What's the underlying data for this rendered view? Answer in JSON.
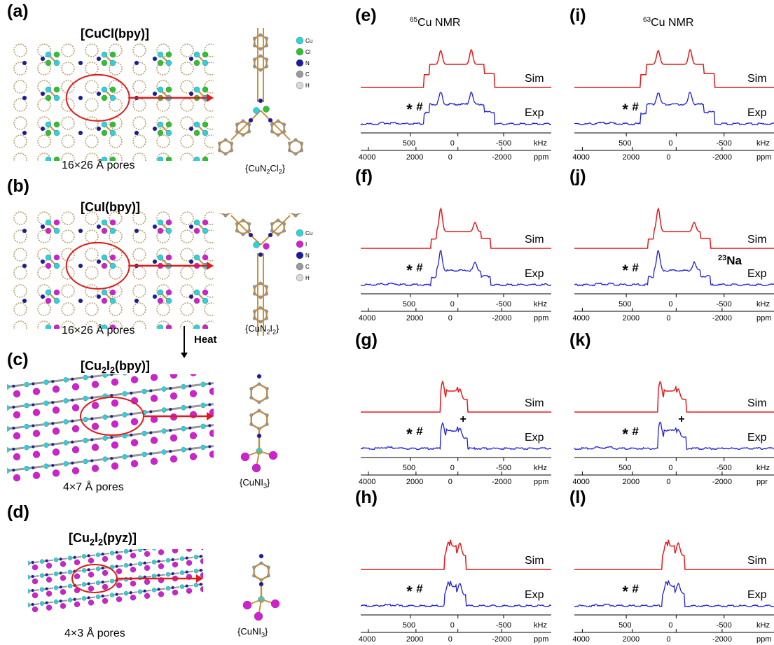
{
  "colors": {
    "sim": "#e31a1c",
    "exp": "#1f1fd6",
    "arrow": "#e11b1b",
    "ellipse": "#e11b1b",
    "cu": "#2ad4dc",
    "cl": "#2fc22f",
    "i": "#d21fd2",
    "n": "#1a1aa8",
    "c": "#9a9a9a",
    "h": "#d8d8d8",
    "bond": "#c89040"
  },
  "structures": {
    "a": {
      "label": "(a)",
      "title": "[CuCl(bpy)]",
      "pores": "16×26 Å pores",
      "fragment": "{CuN2Cl2}",
      "legend": [
        "Cu",
        "Cl",
        "N",
        "C",
        "H"
      ],
      "legend_colors": [
        "cu",
        "cl",
        "n",
        "c",
        "h"
      ]
    },
    "b": {
      "label": "(b)",
      "title": "[CuI(bpy)]",
      "pores": "16×26 Å pores",
      "fragment": "{CuN2I2}",
      "legend": [
        "Cu",
        "I",
        "N",
        "C",
        "H"
      ],
      "legend_colors": [
        "cu",
        "i",
        "n",
        "c",
        "h"
      ]
    },
    "c": {
      "label": "(c)",
      "title": "[Cu2I2(bpy)]",
      "pores": "4×7 Å pores",
      "fragment": "{CuNI3}"
    },
    "d": {
      "label": "(d)",
      "title": "[Cu2I2(pyz)]",
      "pores": "4×3 Å pores",
      "fragment": "{CuNI3}"
    }
  },
  "heat_label": "Heat",
  "column_titles": {
    "cu65": "65Cu NMR",
    "cu63": "63Cu NMR"
  },
  "spectra": [
    {
      "label": "(e)",
      "sim": "Sim",
      "exp": "Exp",
      "markers": [
        "*",
        "#"
      ]
    },
    {
      "label": "(f)",
      "sim": "Sim",
      "exp": "Exp",
      "markers": [
        "*",
        "#"
      ]
    },
    {
      "label": "(g)",
      "sim": "Sim",
      "exp": "Exp",
      "markers": [
        "*",
        "#",
        "+"
      ]
    },
    {
      "label": "(h)",
      "sim": "Sim",
      "exp": "Exp",
      "markers": [
        "*",
        "#"
      ]
    },
    {
      "label": "(i)",
      "sim": "Sim",
      "exp": "Exp",
      "markers": [
        "*",
        "#"
      ]
    },
    {
      "label": "(j)",
      "sim": "Sim",
      "exp": "Exp",
      "markers": [
        "*",
        "#"
      ],
      "extra": "23Na"
    },
    {
      "label": "(k)",
      "sim": "Sim",
      "exp": "Exp",
      "markers": [
        "*",
        "#",
        "+"
      ]
    },
    {
      "label": "(l)",
      "sim": "Sim",
      "exp": "Exp",
      "markers": [
        "*",
        "#"
      ]
    }
  ],
  "axes": {
    "khz_ticks": [
      "500",
      "0",
      "-500"
    ],
    "khz_unit": "kHz",
    "ppm_ticks": [
      "4000",
      "2000",
      "0",
      "-2000"
    ],
    "ppm_unit": "ppm",
    "ppm_unit_truncated": "ppr"
  }
}
